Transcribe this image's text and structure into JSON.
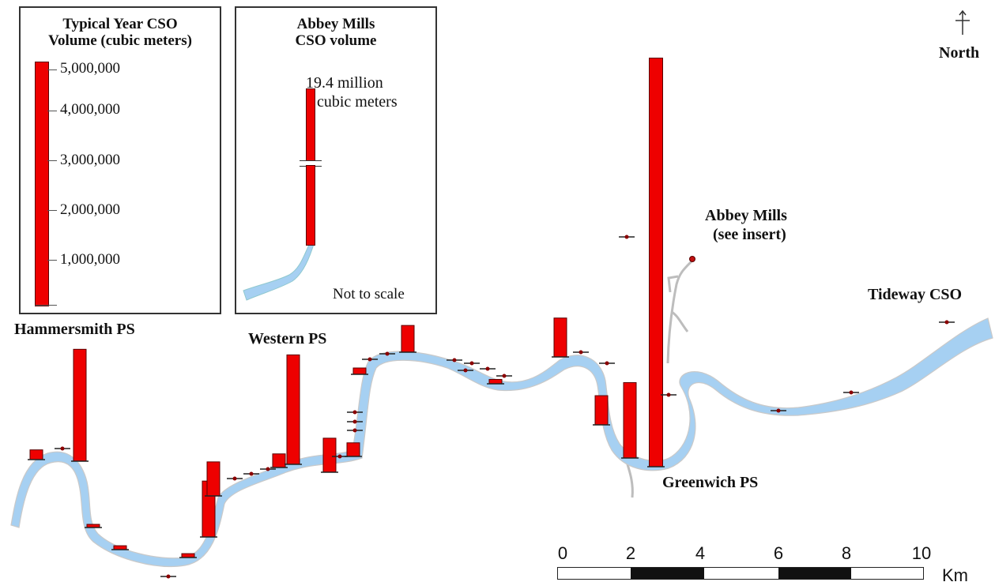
{
  "labels": {
    "hammersmith": "Hammersmith PS",
    "western": "Western PS",
    "abbey_mills_map": "Abbey Mills",
    "abbey_mills_note": "(see insert)",
    "tideway": "Tideway CSO",
    "greenwich": "Greenwich PS",
    "north": "North"
  },
  "legend": {
    "title_line1": "Typical Year CSO",
    "title_line2": "Volume (cubic meters)",
    "ticks": [
      "5,000,000",
      "4,000,000",
      "3,000,000",
      "2,000,000",
      "1,000,000"
    ]
  },
  "inset": {
    "title_line1": "Abbey Mills",
    "title_line2": "CSO volume",
    "value_line1": "19.4 million",
    "value_line2": "cubic meters",
    "note": "Not to scale"
  },
  "scale_bar": {
    "ticks": [
      "0",
      "2",
      "4",
      "6",
      "8",
      "10"
    ],
    "unit": "Km"
  },
  "colors": {
    "river": "#a6d0f2",
    "bar": "#ee0000",
    "bar_outline": "#5a0000",
    "tributary": "#bdbdbd"
  },
  "map_data": {
    "legend_scale_max": 5000000,
    "abbey_mills_volume_m3": 19400000,
    "overflow_volumes_m3": [
      {
        "id": "cso-hammersmith-w",
        "volume": 200000
      },
      {
        "id": "cso-hammersmith-ps",
        "volume": 2300000
      },
      {
        "id": "cso-fulham-1",
        "volume": 30000
      },
      {
        "id": "cso-fulham-2",
        "volume": 80000
      },
      {
        "id": "cso-putney",
        "volume": 80000
      },
      {
        "id": "cso-wandsworth-1",
        "volume": 1150000
      },
      {
        "id": "cso-wandsworth-2",
        "volume": 700000
      },
      {
        "id": "cso-battersea",
        "volume": 280000
      },
      {
        "id": "cso-western-ps",
        "volume": 2250000
      },
      {
        "id": "cso-westminster-1",
        "volume": 700000
      },
      {
        "id": "cso-westminster-2",
        "volume": 280000
      },
      {
        "id": "cso-city",
        "volume": 130000
      },
      {
        "id": "cso-blackfriars",
        "volume": 550000
      },
      {
        "id": "cso-tower",
        "volume": 90000
      },
      {
        "id": "cso-limehouse",
        "volume": 800000
      },
      {
        "id": "cso-deptford",
        "volume": 600000
      },
      {
        "id": "cso-greenwich-ps",
        "volume": 1550000
      },
      {
        "id": "cso-greenwich-main",
        "volume": 8400000
      }
    ]
  }
}
